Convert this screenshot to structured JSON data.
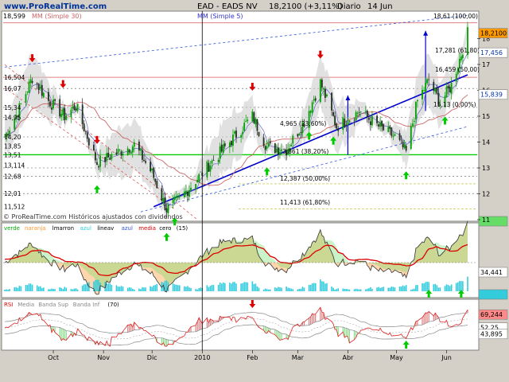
{
  "header": {
    "site": "www.ProRealTime.com",
    "title": "EAD - EADS NV",
    "price_change": "18,2100 (+3,11%)",
    "period": "Diario",
    "date": "14 Jun",
    "corner_value": "18,599",
    "ma30_label": "MM (Simple 30)",
    "ma5_label": "MM (Simple 5)"
  },
  "footer": {
    "credit": "© ProRealTime.com Históricos ajustados con dividendos"
  },
  "colors": {
    "bg": "#ffffff",
    "frame": "#d4d0c8",
    "up_candle": "#00a000",
    "down_candle": "#d00000",
    "trend": "#0000cc",
    "support": "#00cc00",
    "resistance": "#e08080",
    "up_arrow": "#00cc00",
    "down_arrow": "#dd0000",
    "ma": "#cc0000",
    "price_tag": "#ff9900"
  },
  "chart_data": [
    {
      "type": "candlestick",
      "name": "price-panel",
      "ylim": [
        11,
        19
      ],
      "x_tick_labels": [
        "Oct",
        "Nov",
        "Dic",
        "2010",
        "Feb",
        "Mar",
        "Abr",
        "May",
        "Jun"
      ],
      "y_tick_labels": [
        "11",
        "12",
        "13",
        "14",
        "15",
        "16",
        "17",
        "18"
      ],
      "left_levels": [
        "16,504",
        "16,07",
        "15,34",
        "14,95",
        "14,20",
        "13,85",
        "13,51",
        "13,114",
        "12,68",
        "12,01",
        "11,512"
      ],
      "right_tags": [
        "18,2100",
        "17,456",
        "15,839"
      ],
      "fib_labels": [
        "18,61 (100,00)",
        "17,281 (61,80)",
        "16,459 (50,00)",
        "15,13 (0,00%)",
        "4,965 (23,60%)",
        "3,861 (38,20%)",
        "12,387 (50,00%)",
        "11,413 (61,80%)"
      ],
      "levels": {
        "support": 13.51,
        "resistance": 16.504,
        "top": 18.61
      },
      "close_path": [
        {
          "d": "2009-09-01",
          "v": 14.2
        },
        {
          "d": "2009-09-10",
          "v": 15.3
        },
        {
          "d": "2009-09-18",
          "v": 16.5
        },
        {
          "d": "2009-09-28",
          "v": 15.6
        },
        {
          "d": "2009-10-08",
          "v": 15.0
        },
        {
          "d": "2009-10-15",
          "v": 15.4
        },
        {
          "d": "2009-10-28",
          "v": 13.2
        },
        {
          "d": "2009-11-10",
          "v": 13.6
        },
        {
          "d": "2009-11-20",
          "v": 13.9
        },
        {
          "d": "2009-12-01",
          "v": 12.8
        },
        {
          "d": "2009-12-10",
          "v": 11.4
        },
        {
          "d": "2009-12-18",
          "v": 11.8
        },
        {
          "d": "2010-01-05",
          "v": 13.1
        },
        {
          "d": "2010-01-18",
          "v": 14.0
        },
        {
          "d": "2010-02-01",
          "v": 15.0
        },
        {
          "d": "2010-02-10",
          "v": 13.8
        },
        {
          "d": "2010-02-22",
          "v": 13.7
        },
        {
          "d": "2010-03-05",
          "v": 14.8
        },
        {
          "d": "2010-03-15",
          "v": 16.3
        },
        {
          "d": "2010-03-25",
          "v": 14.6
        },
        {
          "d": "2010-04-08",
          "v": 15.2
        },
        {
          "d": "2010-04-20",
          "v": 14.6
        },
        {
          "d": "2010-04-30",
          "v": 14.2
        },
        {
          "d": "2010-05-07",
          "v": 13.6
        },
        {
          "d": "2010-05-14",
          "v": 15.6
        },
        {
          "d": "2010-05-21",
          "v": 16.4
        },
        {
          "d": "2010-05-28",
          "v": 15.5
        },
        {
          "d": "2010-06-04",
          "v": 16.2
        },
        {
          "d": "2010-06-14",
          "v": 18.21
        }
      ],
      "annotations": {
        "down_arrows": [
          "2009-09-18",
          "2009-10-07",
          "2009-10-28",
          "2010-02-01",
          "2010-03-15"
        ],
        "up_arrows": [
          "2009-10-28",
          "2009-12-10",
          "2009-12-15",
          "2010-02-10",
          "2010-03-08",
          "2010-03-23",
          "2010-05-07",
          "2010-05-31"
        ]
      }
    },
    {
      "type": "area",
      "name": "indicator-panel",
      "legend_labels": [
        "verde",
        "naranja",
        "lmarron",
        "azul",
        "lineav",
        "azul",
        "media",
        "cero",
        "(15)"
      ],
      "right_tags": [
        "34,441"
      ],
      "up_arrows": [
        "2010-05-21",
        "2010-06-10"
      ]
    },
    {
      "type": "line",
      "name": "rsi-panel",
      "legend_labels": [
        "RSI",
        "Media",
        "Banda Sup",
        "Banda Inf",
        "(70)"
      ],
      "right_tags": [
        "69,244",
        "52,25",
        "43,895"
      ],
      "down_arrows": [
        "2010-02-01"
      ],
      "up_arrows": [
        "2010-05-07"
      ]
    }
  ]
}
